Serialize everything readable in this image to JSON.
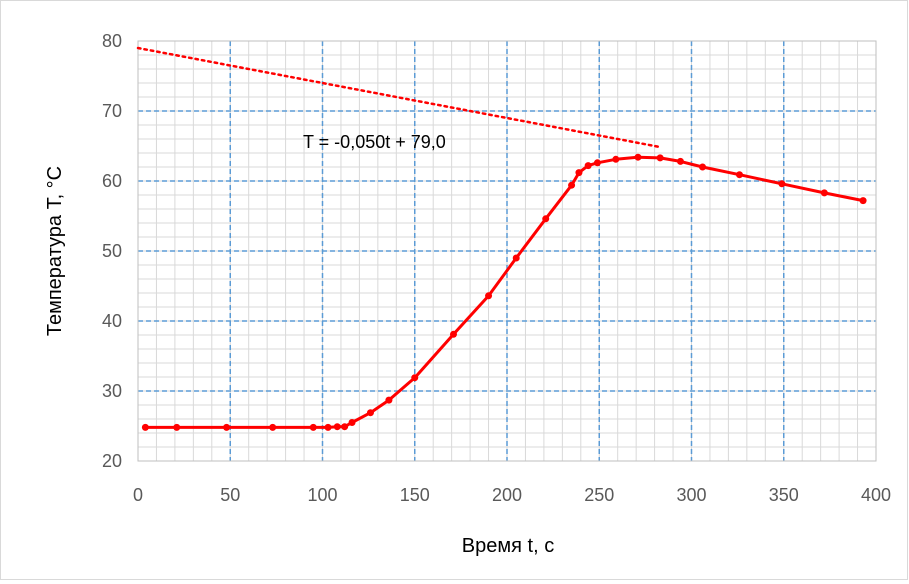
{
  "chart_data": {
    "type": "line",
    "title": "",
    "xlabel": "Время t, с",
    "ylabel": "Температура T, °С",
    "xlim": [
      0,
      400
    ],
    "ylim": [
      20,
      80
    ],
    "x_ticks": [
      0,
      50,
      100,
      150,
      200,
      250,
      300,
      350,
      400
    ],
    "y_ticks": [
      20,
      30,
      40,
      50,
      60,
      70,
      80
    ],
    "x_tick_labels": [
      "0",
      "50",
      "100",
      "150",
      "200",
      "250",
      "300",
      "350",
      "400"
    ],
    "y_tick_labels": [
      "20",
      "30",
      "40",
      "50",
      "60",
      "70",
      "80"
    ],
    "grid": true,
    "legend": "none",
    "colors": {
      "series": "#ff0000",
      "major_grid": "#5b9bd5",
      "minor_grid": "#d9d9d9"
    },
    "series": [
      {
        "x": [
          4,
          21,
          48,
          73,
          95,
          103,
          108,
          112,
          116,
          126,
          136,
          150,
          171,
          190,
          205,
          221,
          235,
          239,
          244,
          249,
          259,
          271,
          283,
          294,
          306,
          326,
          349,
          372,
          393
        ],
        "y": [
          24.8,
          24.8,
          24.8,
          24.8,
          24.8,
          24.8,
          24.9,
          24.9,
          25.5,
          26.9,
          28.7,
          31.9,
          38.1,
          43.6,
          49.0,
          54.6,
          59.4,
          61.2,
          62.2,
          62.6,
          63.1,
          63.4,
          63.3,
          62.8,
          62.0,
          60.9,
          59.6,
          58.3,
          57.2
        ]
      }
    ],
    "trendline": {
      "type": "linear",
      "slope": -0.05,
      "intercept": 79.0,
      "x_range": [
        0,
        283
      ],
      "style": "dotted",
      "equation_label": "T = -0,050t + 79,0"
    }
  }
}
